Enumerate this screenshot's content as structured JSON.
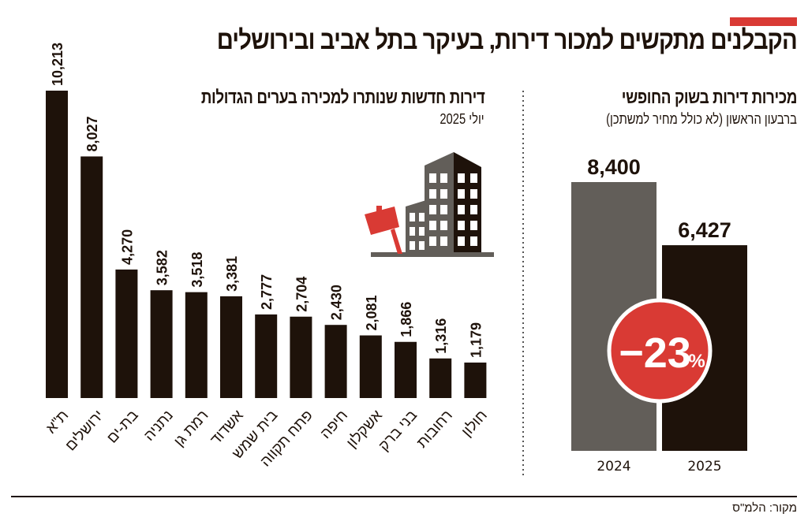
{
  "title": "הקבלנים מתקשים למכור דירות, בעיקר בתל אביב ובירושלים",
  "source": "מקור: הלמ\"ס",
  "colors": {
    "accent_red": "#d93a34",
    "dark": "#1e120a",
    "gray": "#625e59"
  },
  "icons": [
    "building-for-sale-icon"
  ],
  "chart_data": [
    {
      "type": "bar",
      "title": "דירות חדשות שנותרו למכירה בערים הגדולות",
      "subtitle": "יולי 2025",
      "categories": [
        "ת\"א",
        "ירושלים",
        "בת-ים",
        "נתניה",
        "רמת גן",
        "אשדוד",
        "בית שמש",
        "פתח תקווה",
        "חיפה",
        "אשקלון",
        "בני ברק",
        "רחובות",
        "חולון"
      ],
      "values": [
        10213,
        8027,
        4270,
        3582,
        3518,
        3381,
        2777,
        2704,
        2430,
        2081,
        1866,
        1316,
        1179
      ],
      "value_labels": [
        "10,213",
        "8,027",
        "4,270",
        "3,582",
        "3,518",
        "3,381",
        "2,777",
        "2,704",
        "2,430",
        "2,081",
        "1,866",
        "1,316",
        "1,179"
      ],
      "ylim": [
        0,
        10213
      ],
      "grid": false
    },
    {
      "type": "bar",
      "title": "מכירות דירות בשוק החופשי",
      "subtitle": "ברבעון הראשון (לא כולל מחיר למשתכן)",
      "categories": [
        "2024",
        "2025"
      ],
      "values": [
        8400,
        6427
      ],
      "value_labels": [
        "8,400",
        "6,427"
      ],
      "annotation": {
        "value": "−23",
        "unit": "%"
      },
      "ylim": [
        0,
        8400
      ],
      "grid": false
    }
  ]
}
